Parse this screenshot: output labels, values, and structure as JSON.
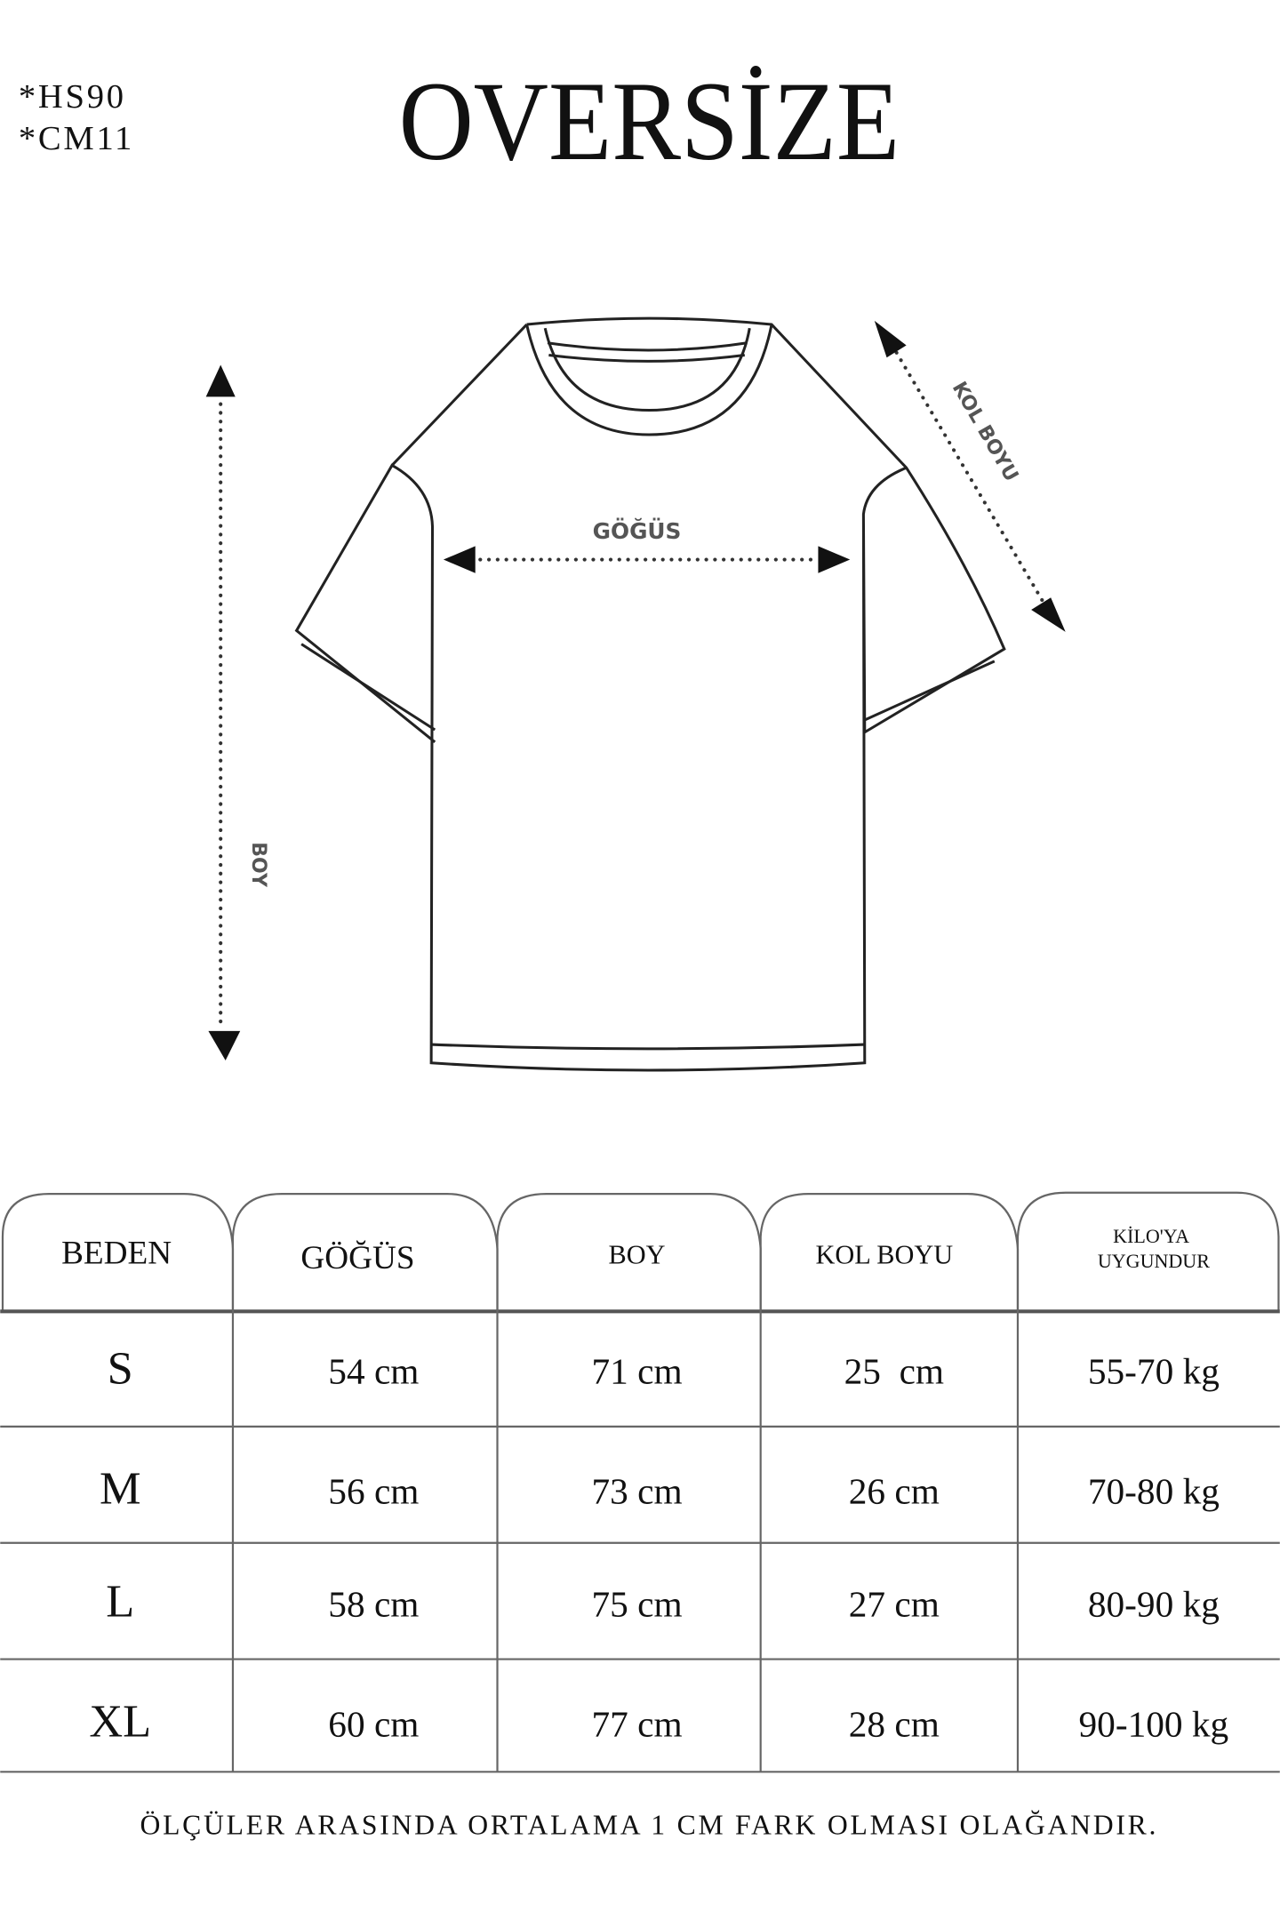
{
  "codes": [
    "*HS90",
    "*CM11"
  ],
  "title": "OVERSİZE",
  "diagram": {
    "chest_label": "GÖĞÜS",
    "sleeve_label": "KOL BOYU",
    "length_label": "BOY"
  },
  "table": {
    "headers": [
      "BEDEN",
      "GÖĞÜS",
      "BOY",
      "KOL BOYU",
      "KİLO'YA",
      "UYGUNDUR"
    ],
    "rows": [
      [
        "S",
        "54 cm",
        "71 cm",
        "25  cm",
        "55-70 kg"
      ],
      [
        "M",
        "56 cm",
        "73 cm",
        "26 cm",
        "70-80 kg"
      ],
      [
        "L",
        "58 cm",
        "75 cm",
        "27 cm",
        "80-90 kg"
      ],
      [
        "XL",
        "60 cm",
        "77 cm",
        "28 cm",
        "90-100 kg"
      ]
    ]
  },
  "footer": "ÖLÇÜLER ARASINDA ORTALAMA 1 CM FARK OLMASI OLAĞANDIR."
}
